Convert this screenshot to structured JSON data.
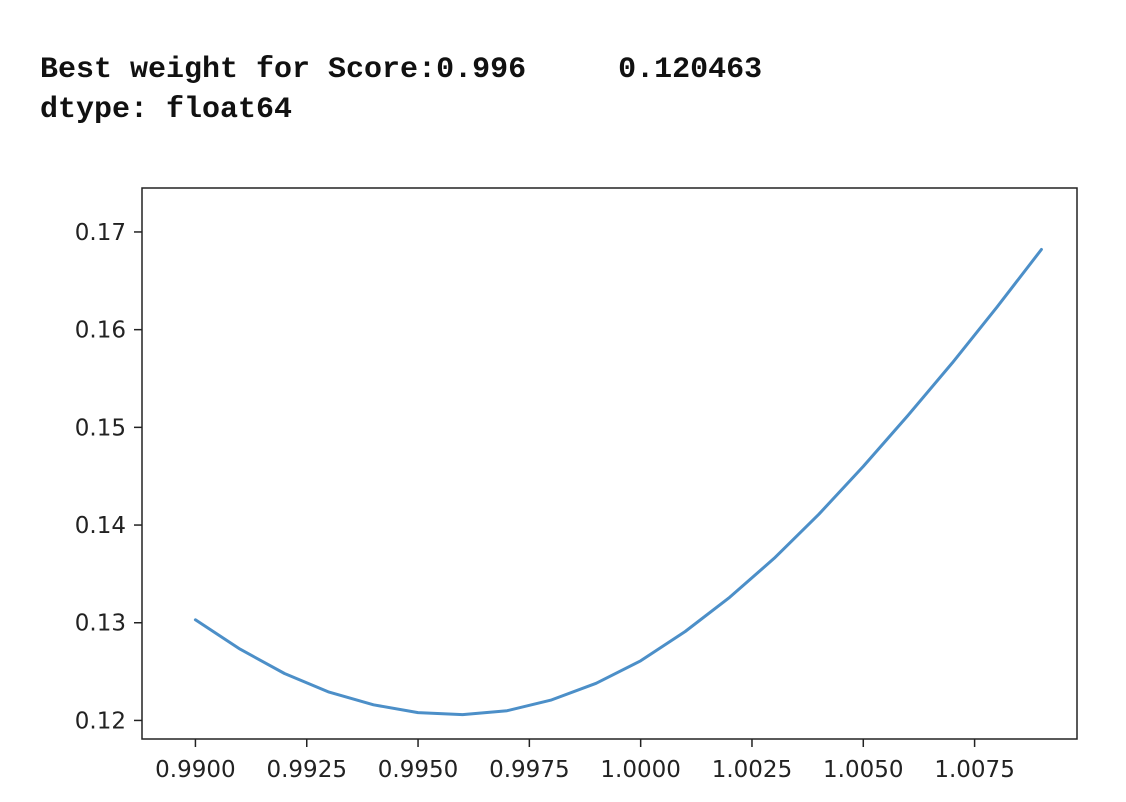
{
  "output": {
    "line1_label": "Best weight for Score:0.996",
    "line1_value": "0.120463",
    "line2": "dtype: float64"
  },
  "chart_data": {
    "type": "line",
    "title": "",
    "xlabel": "",
    "ylabel": "",
    "xlim": [
      0.9888,
      1.0098
    ],
    "ylim": [
      0.1181,
      0.1745
    ],
    "x_ticks": [
      0.99,
      0.9925,
      0.995,
      0.9975,
      1.0,
      1.0025,
      1.005,
      1.0075
    ],
    "x_tick_labels": [
      "0.9900",
      "0.9925",
      "0.9950",
      "0.9975",
      "1.0000",
      "1.0025",
      "1.0050",
      "1.0075"
    ],
    "y_ticks": [
      0.12,
      0.13,
      0.14,
      0.15,
      0.16,
      0.17
    ],
    "y_tick_labels": [
      "0.12",
      "0.13",
      "0.14",
      "0.15",
      "0.16",
      "0.17"
    ],
    "grid": false,
    "line_color": "#4c8fc8",
    "series": [
      {
        "x": [
          0.99,
          0.991,
          0.992,
          0.993,
          0.994,
          0.995,
          0.996,
          0.997,
          0.998,
          0.999,
          1.0,
          1.001,
          1.002,
          1.003,
          1.004,
          1.005,
          1.006,
          1.007,
          1.008,
          1.009
        ],
        "values": [
          0.1303,
          0.1273,
          0.1248,
          0.1229,
          0.1216,
          0.1208,
          0.1206,
          0.121,
          0.1221,
          0.1238,
          0.1261,
          0.1291,
          0.1326,
          0.1366,
          0.1411,
          0.146,
          0.1512,
          0.1566,
          0.1623,
          0.1682
        ]
      }
    ]
  }
}
